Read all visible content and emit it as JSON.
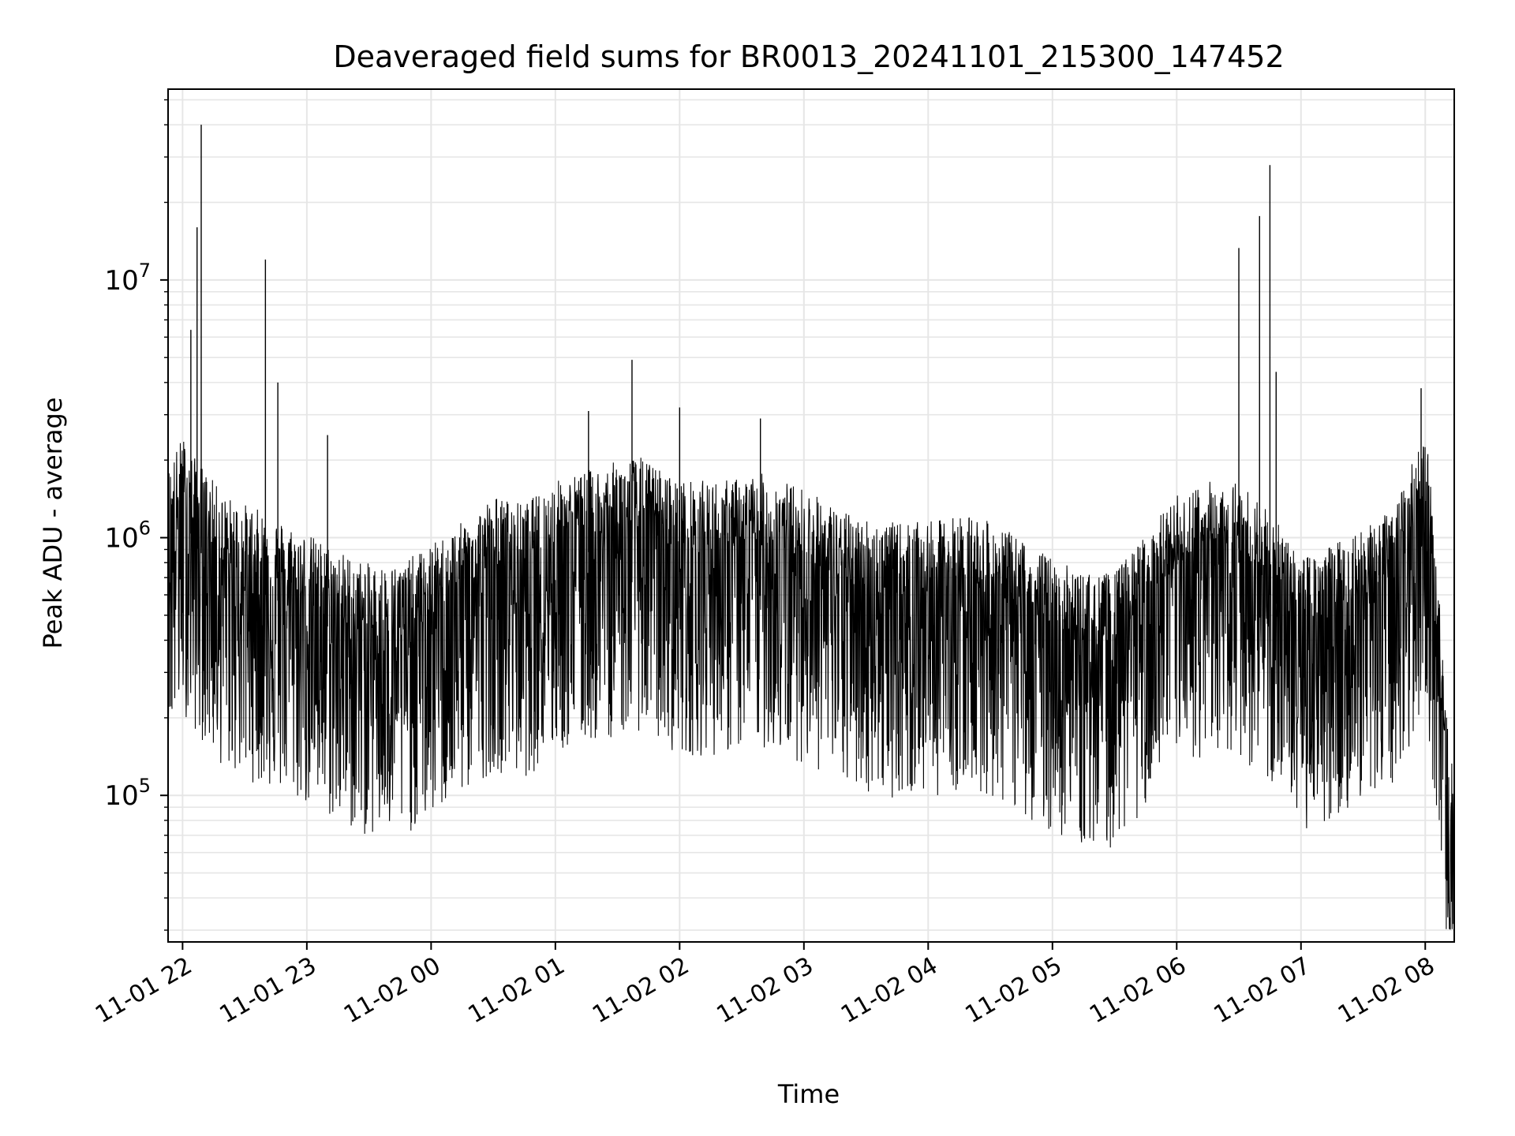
{
  "chart_data": {
    "type": "line",
    "title": "Deaveraged field sums for BR0013_20241101_215300_147452",
    "xlabel": "Time",
    "ylabel": "Peak ADU - average",
    "yscale": "log",
    "grid": true,
    "line_color": "#000000",
    "grid_color": "#e6e6e6",
    "xlim": [
      "2024-11-01 21:53",
      "2024-11-02 08:14"
    ],
    "ylim": [
      27000,
      55000000
    ],
    "x_ticks": [
      "11-01 22",
      "11-01 23",
      "11-02 00",
      "11-02 01",
      "11-02 02",
      "11-02 03",
      "11-02 04",
      "11-02 05",
      "11-02 06",
      "11-02 07",
      "11-02 08"
    ],
    "x_tick_times": [
      "2024-11-01 22:00",
      "2024-11-01 23:00",
      "2024-11-02 00:00",
      "2024-11-02 01:00",
      "2024-11-02 02:00",
      "2024-11-02 03:00",
      "2024-11-02 04:00",
      "2024-11-02 05:00",
      "2024-11-02 06:00",
      "2024-11-02 07:00",
      "2024-11-02 08:00"
    ],
    "y_ticks": [
      {
        "value": 100000,
        "base": "10",
        "exp": "5"
      },
      {
        "value": 1000000,
        "base": "10",
        "exp": "6"
      },
      {
        "value": 10000000,
        "base": "10",
        "exp": "7"
      }
    ],
    "series": [
      {
        "x": [
          "2024-11-01 21:53",
          "2024-11-01 22:00",
          "2024-11-01 22:05",
          "2024-11-01 22:10",
          "2024-11-01 22:20",
          "2024-11-01 22:30",
          "2024-11-01 22:40",
          "2024-11-01 22:50",
          "2024-11-01 23:00",
          "2024-11-01 23:15",
          "2024-11-01 23:30",
          "2024-11-01 23:45",
          "2024-11-02 00:00",
          "2024-11-02 00:15",
          "2024-11-02 00:30",
          "2024-11-02 00:45",
          "2024-11-02 01:00",
          "2024-11-02 01:20",
          "2024-11-02 01:40",
          "2024-11-02 02:00",
          "2024-11-02 02:20",
          "2024-11-02 02:40",
          "2024-11-02 03:00",
          "2024-11-02 03:20",
          "2024-11-02 03:40",
          "2024-11-02 04:00",
          "2024-11-02 04:20",
          "2024-11-02 04:40",
          "2024-11-02 05:00",
          "2024-11-02 05:15",
          "2024-11-02 05:30",
          "2024-11-02 05:45",
          "2024-11-02 06:00",
          "2024-11-02 06:15",
          "2024-11-02 06:30",
          "2024-11-02 06:45",
          "2024-11-02 07:00",
          "2024-11-02 07:15",
          "2024-11-02 07:30",
          "2024-11-02 07:45",
          "2024-11-02 08:00",
          "2024-11-02 08:05",
          "2024-11-02 08:10",
          "2024-11-02 08:14"
        ],
        "y": [
          900000,
          1200000,
          1000000,
          900000,
          700000,
          650000,
          600000,
          550000,
          500000,
          430000,
          380000,
          380000,
          450000,
          550000,
          700000,
          650000,
          800000,
          900000,
          1000000,
          800000,
          800000,
          850000,
          750000,
          600000,
          550000,
          550000,
          600000,
          500000,
          400000,
          350000,
          350000,
          500000,
          700000,
          800000,
          800000,
          600000,
          400000,
          450000,
          550000,
          600000,
          1300000,
          500000,
          100000,
          60000
        ],
        "spikes": [
          {
            "x": "2024-11-01 22:04",
            "y": 6400000
          },
          {
            "x": "2024-11-01 22:07",
            "y": 16000000
          },
          {
            "x": "2024-11-01 22:09",
            "y": 40000000
          },
          {
            "x": "2024-11-01 22:40",
            "y": 12000000
          },
          {
            "x": "2024-11-01 22:46",
            "y": 4000000
          },
          {
            "x": "2024-11-01 23:10",
            "y": 2500000
          },
          {
            "x": "2024-11-02 01:16",
            "y": 3100000
          },
          {
            "x": "2024-11-02 01:37",
            "y": 4900000
          },
          {
            "x": "2024-11-02 02:00",
            "y": 3200000
          },
          {
            "x": "2024-11-02 02:39",
            "y": 2900000
          },
          {
            "x": "2024-11-02 06:30",
            "y": 13300000
          },
          {
            "x": "2024-11-02 06:40",
            "y": 17700000
          },
          {
            "x": "2024-11-02 06:45",
            "y": 27900000
          },
          {
            "x": "2024-11-02 06:48",
            "y": 4400000
          },
          {
            "x": "2024-11-02 07:58",
            "y": 3800000
          }
        ]
      }
    ]
  }
}
